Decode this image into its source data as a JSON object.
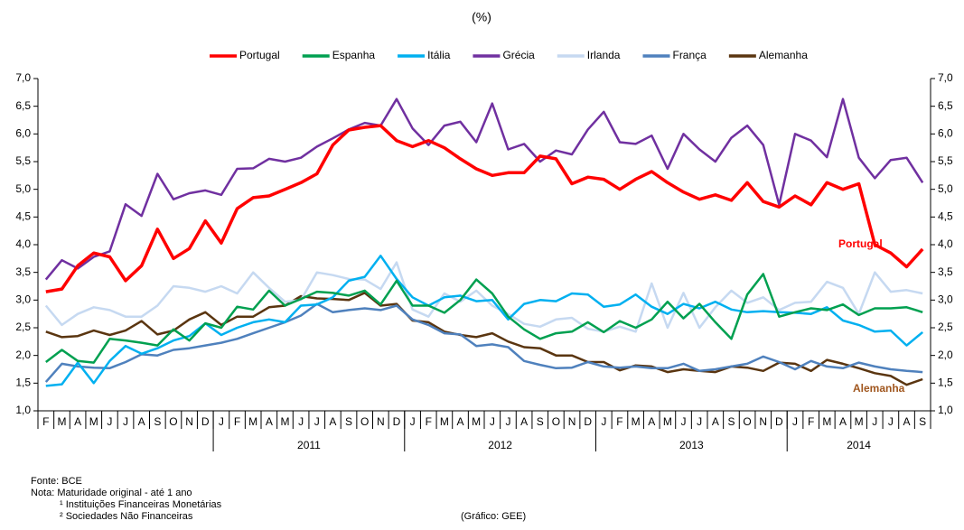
{
  "chart_data": {
    "type": "line",
    "title": "(%)",
    "categories": [
      "F",
      "M",
      "A",
      "M",
      "J",
      "J",
      "A",
      "S",
      "O",
      "N",
      "D",
      "J",
      "F",
      "M",
      "A",
      "M",
      "J",
      "J",
      "A",
      "S",
      "O",
      "N",
      "D",
      "J",
      "F",
      "M",
      "A",
      "M",
      "J",
      "J",
      "A",
      "S",
      "O",
      "N",
      "D",
      "J",
      "F",
      "M",
      "A",
      "M",
      "J",
      "J",
      "A",
      "S",
      "O",
      "N",
      "D",
      "J",
      "F",
      "M",
      "A",
      "M",
      "J",
      "J",
      "A",
      "S"
    ],
    "year_groups": [
      {
        "label": null,
        "size": 11
      },
      {
        "label": "2011",
        "size": 12
      },
      {
        "label": "2012",
        "size": 12
      },
      {
        "label": "2013",
        "size": 12
      },
      {
        "label": "2014",
        "size": 9
      }
    ],
    "ylim": [
      1,
      7
    ],
    "yticks": [
      {
        "value": 1,
        "label": "1,0"
      },
      {
        "value": 1.5,
        "label": "1,5"
      },
      {
        "value": 2,
        "label": "2,0"
      },
      {
        "value": 2.5,
        "label": "2,5"
      },
      {
        "value": 3,
        "label": "3,0"
      },
      {
        "value": 3.5,
        "label": "3,5"
      },
      {
        "value": 4,
        "label": "4,0"
      },
      {
        "value": 4.5,
        "label": "4,5"
      },
      {
        "value": 5,
        "label": "5,0"
      },
      {
        "value": 5.5,
        "label": "5,5"
      },
      {
        "value": 6,
        "label": "6,0"
      },
      {
        "value": 6.5,
        "label": "6,5"
      },
      {
        "value": 7,
        "label": "7,0"
      }
    ],
    "grid": false,
    "legend": "top",
    "series": [
      {
        "name": "Portugal",
        "color": "#ff0000",
        "values": [
          3.15,
          3.2,
          3.62,
          3.85,
          3.78,
          3.35,
          3.62,
          4.28,
          3.75,
          3.93,
          4.43,
          4.03,
          4.65,
          4.85,
          4.88,
          5.0,
          5.12,
          5.28,
          5.8,
          6.07,
          6.12,
          6.15,
          5.88,
          5.77,
          5.88,
          5.75,
          5.55,
          5.37,
          5.25,
          5.3,
          5.3,
          5.6,
          5.55,
          5.1,
          5.22,
          5.18,
          5.0,
          5.18,
          5.32,
          5.12,
          4.95,
          4.82,
          4.9,
          4.8,
          5.12,
          4.78,
          4.68,
          4.88,
          4.72,
          5.12,
          5.0,
          5.1,
          4.0,
          3.85,
          3.6,
          3.92
        ]
      },
      {
        "name": "Espanha",
        "color": "#00a050",
        "values": [
          1.88,
          2.1,
          1.9,
          1.87,
          2.3,
          2.27,
          2.23,
          2.18,
          2.47,
          2.27,
          2.58,
          2.5,
          2.88,
          2.83,
          3.17,
          2.9,
          3.02,
          3.15,
          3.13,
          3.08,
          3.17,
          2.92,
          3.35,
          2.9,
          2.9,
          2.77,
          3.0,
          3.37,
          3.12,
          2.7,
          2.47,
          2.3,
          2.4,
          2.43,
          2.6,
          2.42,
          2.62,
          2.5,
          2.65,
          2.97,
          2.67,
          2.93,
          2.6,
          2.3,
          3.1,
          3.47,
          2.7,
          2.78,
          2.85,
          2.82,
          2.92,
          2.73,
          2.85,
          2.85,
          2.87,
          2.78
        ]
      },
      {
        "name": "Itália",
        "color": "#00b0f0",
        "values": [
          1.45,
          1.48,
          1.87,
          1.5,
          1.9,
          2.17,
          2.03,
          2.13,
          2.27,
          2.35,
          2.58,
          2.37,
          2.5,
          2.6,
          2.65,
          2.6,
          2.9,
          2.92,
          3.05,
          3.35,
          3.42,
          3.8,
          3.38,
          3.05,
          2.9,
          3.05,
          3.08,
          2.98,
          3.0,
          2.65,
          2.93,
          3.0,
          2.98,
          3.12,
          3.1,
          2.88,
          2.92,
          3.1,
          2.88,
          2.75,
          2.93,
          2.85,
          2.97,
          2.83,
          2.78,
          2.8,
          2.78,
          2.77,
          2.75,
          2.87,
          2.63,
          2.55,
          2.43,
          2.45,
          2.18,
          2.42
        ]
      },
      {
        "name": "Grécia",
        "color": "#7030a0",
        "values": [
          3.37,
          3.72,
          3.57,
          3.78,
          3.88,
          4.73,
          4.52,
          5.28,
          4.82,
          4.93,
          4.98,
          4.9,
          5.37,
          5.38,
          5.55,
          5.5,
          5.57,
          5.77,
          5.92,
          6.08,
          6.2,
          6.15,
          6.63,
          6.1,
          5.8,
          6.15,
          6.22,
          5.85,
          6.55,
          5.72,
          5.82,
          5.5,
          5.7,
          5.63,
          6.08,
          6.4,
          5.85,
          5.82,
          5.97,
          5.37,
          6.0,
          5.72,
          5.5,
          5.93,
          6.15,
          5.8,
          4.72,
          6.0,
          5.88,
          5.58,
          6.63,
          5.57,
          5.2,
          5.53,
          5.57,
          5.12
        ]
      },
      {
        "name": "Irlanda",
        "color": "#c6d9f1",
        "values": [
          2.9,
          2.55,
          2.75,
          2.87,
          2.82,
          2.7,
          2.7,
          2.9,
          3.25,
          3.22,
          3.15,
          3.25,
          3.12,
          3.5,
          3.22,
          2.97,
          3.0,
          3.5,
          3.45,
          3.38,
          3.37,
          3.2,
          3.68,
          2.83,
          2.7,
          3.12,
          2.97,
          3.17,
          2.9,
          2.75,
          2.57,
          2.52,
          2.65,
          2.68,
          2.48,
          2.43,
          2.52,
          2.43,
          3.3,
          2.5,
          3.13,
          2.5,
          2.87,
          3.17,
          2.95,
          3.05,
          2.82,
          2.95,
          2.97,
          3.33,
          3.22,
          2.75,
          3.5,
          3.15,
          3.18,
          3.12
        ]
      },
      {
        "name": "França",
        "color": "#4f81bd",
        "values": [
          1.52,
          1.85,
          1.8,
          1.78,
          1.77,
          1.88,
          2.02,
          2.0,
          2.1,
          2.13,
          2.18,
          2.23,
          2.3,
          2.4,
          2.5,
          2.6,
          2.72,
          2.93,
          2.78,
          2.82,
          2.85,
          2.82,
          2.9,
          2.65,
          2.55,
          2.4,
          2.38,
          2.17,
          2.2,
          2.15,
          1.9,
          1.83,
          1.77,
          1.78,
          1.88,
          1.8,
          1.78,
          1.8,
          1.77,
          1.77,
          1.85,
          1.72,
          1.75,
          1.8,
          1.85,
          1.98,
          1.88,
          1.75,
          1.9,
          1.8,
          1.77,
          1.87,
          1.8,
          1.75,
          1.72,
          1.7
        ]
      },
      {
        "name": "Alemanha",
        "color": "#5a3510",
        "values": [
          2.43,
          2.33,
          2.35,
          2.45,
          2.37,
          2.45,
          2.62,
          2.38,
          2.45,
          2.65,
          2.78,
          2.55,
          2.7,
          2.7,
          2.87,
          2.9,
          3.07,
          3.03,
          3.02,
          3.0,
          3.13,
          2.9,
          2.93,
          2.63,
          2.6,
          2.43,
          2.37,
          2.33,
          2.4,
          2.25,
          2.15,
          2.13,
          2.0,
          2.0,
          1.88,
          1.88,
          1.73,
          1.82,
          1.8,
          1.7,
          1.75,
          1.72,
          1.7,
          1.8,
          1.78,
          1.72,
          1.87,
          1.85,
          1.72,
          1.92,
          1.85,
          1.77,
          1.68,
          1.63,
          1.47,
          1.57
        ]
      }
    ],
    "annotations": [
      {
        "text": "Portugal",
        "color": "#ff0000"
      },
      {
        "text": "Alemanha",
        "color": "#a0561e"
      }
    ],
    "notes": [
      "Fonte: BCE",
      "Nota: Maturidade original - até 1 ano",
      "¹ Instituições Financeiras Monetárias",
      "² Sociedades Não Financeiras",
      "(Gráfico: GEE)"
    ]
  }
}
